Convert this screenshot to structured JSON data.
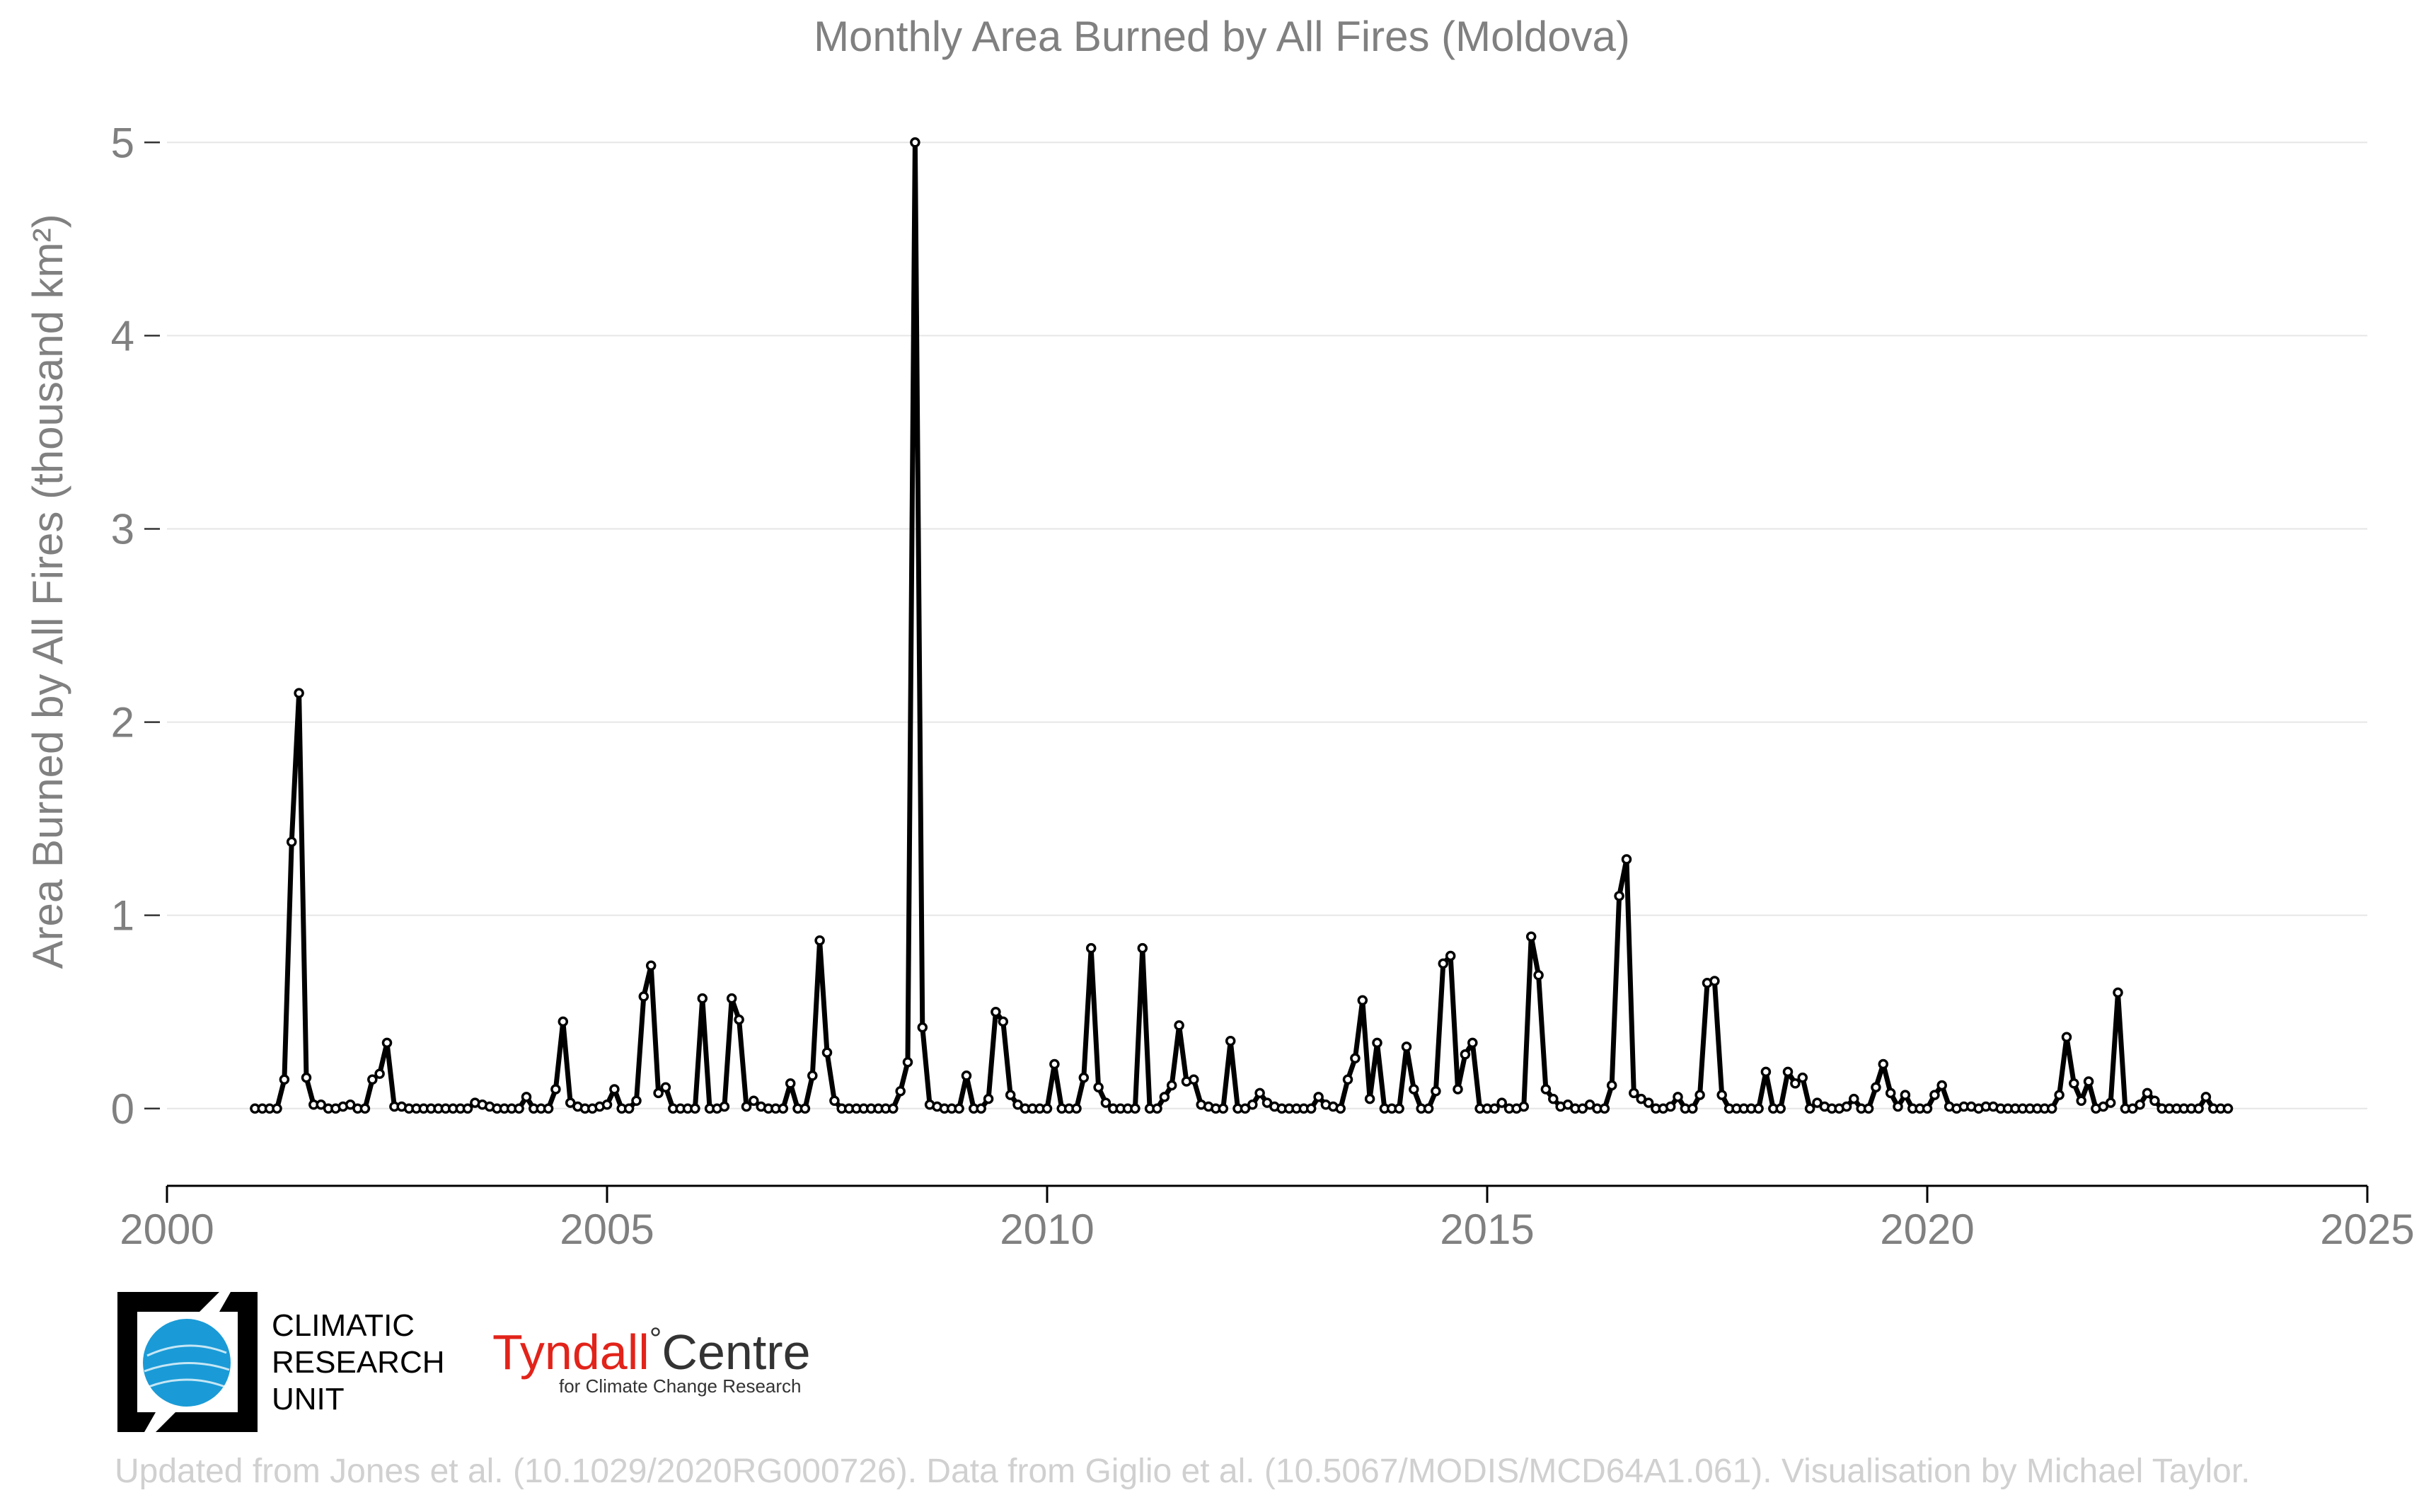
{
  "chart_data": {
    "type": "line",
    "title": "Monthly Area Burned by All Fires (Moldova)",
    "ylabel": "Area Burned by All Fires (thousand km²)",
    "xlabel": "",
    "xlim": [
      2000,
      2025
    ],
    "ylim": [
      -0.4,
      5.1
    ],
    "x_ticks": [
      "2000",
      "2005",
      "2010",
      "2015",
      "2020",
      "2025"
    ],
    "y_ticks": [
      "0",
      "1",
      "2",
      "3",
      "4",
      "5"
    ],
    "grid": "horizontal",
    "start": "2001-01",
    "end": "2023-06",
    "series": [
      {
        "values": [
          0,
          0,
          0,
          0,
          0.15,
          1.38,
          2.15,
          0.16,
          0.02,
          0.02,
          0,
          0,
          0.01,
          0.02,
          0,
          0,
          0.15,
          0.18,
          0.34,
          0.01,
          0.01,
          0,
          0,
          0,
          0,
          0,
          0,
          0,
          0,
          0,
          0.03,
          0.02,
          0.01,
          0,
          0,
          0,
          0,
          0.06,
          0,
          0,
          0,
          0.1,
          0.45,
          0.03,
          0.01,
          0,
          0,
          0.01,
          0.02,
          0.1,
          0,
          0,
          0.04,
          0.58,
          0.74,
          0.08,
          0.11,
          0,
          0,
          0,
          0,
          0.57,
          0,
          0,
          0.01,
          0.57,
          0.46,
          0.01,
          0.04,
          0.01,
          0,
          0,
          0,
          0.13,
          0,
          0,
          0.17,
          0.87,
          0.29,
          0.04,
          0,
          0,
          0,
          0,
          0,
          0,
          0,
          0,
          0.09,
          0.24,
          5.0,
          0.42,
          0.02,
          0.01,
          0,
          0,
          0,
          0.17,
          0,
          0,
          0.05,
          0.5,
          0.45,
          0.07,
          0.02,
          0,
          0,
          0,
          0,
          0.23,
          0,
          0,
          0,
          0.16,
          0.83,
          0.11,
          0.03,
          0,
          0,
          0,
          0,
          0.83,
          0,
          0,
          0.06,
          0.12,
          0.43,
          0.14,
          0.15,
          0.02,
          0.01,
          0,
          0,
          0.35,
          0,
          0,
          0.02,
          0.08,
          0.03,
          0.01,
          0,
          0,
          0,
          0,
          0,
          0.06,
          0.02,
          0.01,
          0,
          0.15,
          0.26,
          0.56,
          0.05,
          0.34,
          0,
          0,
          0,
          0.32,
          0.1,
          0,
          0,
          0.09,
          0.75,
          0.79,
          0.1,
          0.28,
          0.34,
          0,
          0,
          0,
          0.03,
          0,
          0,
          0.01,
          0.89,
          0.69,
          0.1,
          0.05,
          0.01,
          0.02,
          0,
          0,
          0.02,
          0,
          0,
          0.12,
          1.1,
          1.29,
          0.08,
          0.05,
          0.03,
          0,
          0,
          0.01,
          0.06,
          0,
          0,
          0.07,
          0.65,
          0.66,
          0.07,
          0,
          0,
          0,
          0,
          0,
          0.19,
          0,
          0,
          0.19,
          0.13,
          0.16,
          0,
          0.03,
          0.01,
          0,
          0,
          0.01,
          0.05,
          0,
          0,
          0.11,
          0.23,
          0.08,
          0.01,
          0.07,
          0,
          0,
          0,
          0.07,
          0.12,
          0.01,
          0,
          0.01,
          0.01,
          0,
          0.01,
          0.01,
          0,
          0,
          0,
          0,
          0,
          0,
          0,
          0,
          0.07,
          0.37,
          0.13,
          0.04,
          0.14,
          0,
          0.01,
          0.03,
          0.6,
          0,
          0,
          0.02,
          0.08,
          0.04,
          0,
          0,
          0,
          0,
          0,
          0,
          0.06,
          0,
          0,
          0
        ]
      }
    ]
  },
  "logos": {
    "cru_line1": "CLIMATIC",
    "cru_line2": "RESEARCH",
    "cru_line3": "UNIT",
    "tyndall_part1": "Tyndall",
    "tyndall_degree": "°",
    "tyndall_part2": "Centre",
    "tyndall_sub": "for Climate Change Research"
  },
  "credit": "Updated from Jones et al. (10.1029/2020RG000726). Data from Giglio et al. (10.5067/MODIS/MCD64A1.061). Visualisation by Michael Taylor.",
  "colors": {
    "line": "#000000",
    "marker_fill": "#ffffff",
    "text": "#808080",
    "grid": "#e6e6e6",
    "cru_globe": "#1a9bd7",
    "tyndall_red": "#e2231a"
  }
}
